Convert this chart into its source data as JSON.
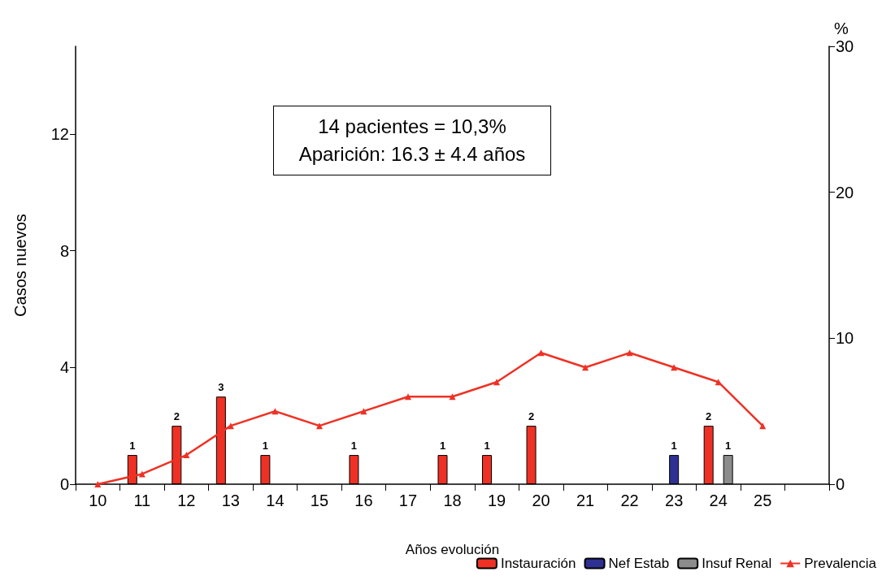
{
  "chart_data": {
    "type": "bar",
    "xlabel": "Años evolución",
    "ylabel": "Casos nuevos",
    "y2label": "%",
    "categories": [
      "10",
      "11",
      "12",
      "13",
      "14",
      "15",
      "16",
      "17",
      "18",
      "19",
      "20",
      "21",
      "22",
      "23",
      "24",
      "25",
      null
    ],
    "series": [
      {
        "name": "Instauración",
        "color": "#ee3124",
        "values": [
          null,
          1,
          2,
          3,
          1,
          null,
          1,
          null,
          1,
          1,
          2,
          null,
          null,
          null,
          2,
          null,
          null
        ],
        "value_labels": [
          null,
          "1",
          "2",
          "3",
          "1",
          null,
          "1",
          null,
          "1",
          "1",
          "2",
          null,
          null,
          null,
          "2",
          null,
          null
        ]
      },
      {
        "name": "Nef Estab",
        "color": "#2e3192",
        "values": [
          null,
          null,
          null,
          null,
          null,
          null,
          null,
          null,
          null,
          null,
          null,
          null,
          null,
          1,
          null,
          null,
          null
        ],
        "value_labels": [
          null,
          null,
          null,
          null,
          null,
          null,
          null,
          null,
          null,
          null,
          null,
          null,
          null,
          "1",
          null,
          null,
          null
        ]
      },
      {
        "name": "Insuf Renal",
        "color": "#8c8c8c",
        "values": [
          null,
          null,
          null,
          null,
          null,
          null,
          null,
          null,
          null,
          null,
          null,
          null,
          null,
          null,
          1,
          null,
          null
        ],
        "value_labels": [
          null,
          null,
          null,
          null,
          null,
          null,
          null,
          null,
          null,
          null,
          null,
          null,
          null,
          null,
          "1",
          null,
          null
        ]
      },
      {
        "name": "Prevalencia",
        "type": "line",
        "axis": "y2",
        "color": "#ee3124",
        "values": [
          0,
          0.7,
          2,
          4,
          5,
          4,
          5,
          6,
          6,
          7,
          9,
          8,
          9,
          8,
          7,
          4,
          null
        ]
      }
    ],
    "ylim": [
      0,
      15
    ],
    "yticks": [
      0,
      4,
      8,
      12
    ],
    "y2lim": [
      0,
      30
    ],
    "y2ticks": [
      0,
      10,
      20,
      30
    ],
    "marker": "triangle",
    "line_style": "solid",
    "grid": false,
    "legend": "bottom right",
    "annotations": [
      "14 pacientes = 10,3%\nAparición: 16.3 ± 4.4 años"
    ]
  }
}
